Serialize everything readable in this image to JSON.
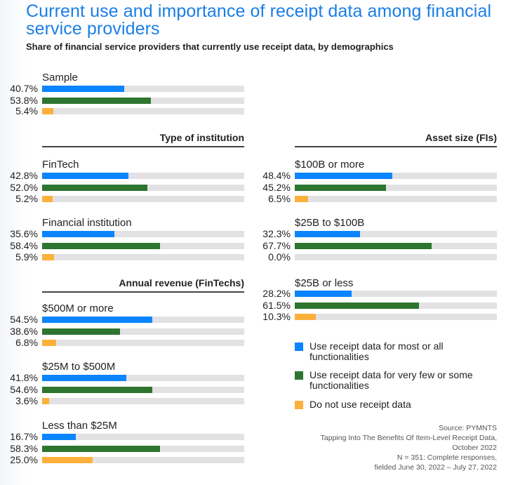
{
  "title": "Current use and importance of receipt data among financial service providers",
  "subtitle": "Share of financial service providers that currently use receipt data, by demographics",
  "colors": {
    "most_or_all": "#0a84ff",
    "few_or_some": "#2e7530",
    "do_not_use": "#fcb03b",
    "title": "#1a7ee6",
    "track": "#e2e2e4"
  },
  "chart_data": {
    "type": "bar",
    "orientation": "horizontal",
    "title": "Current use and importance of receipt data among financial service providers",
    "subtitle": "Share of financial service providers that currently use receipt data, by demographics",
    "xlabel": "",
    "ylabel": "",
    "xlim": [
      0,
      100
    ],
    "unit": "%",
    "grid": false,
    "legend_position": "bottom-right",
    "series_names": [
      "Use receipt data for most or all functionalities",
      "Use receipt data for very few or some functionalities",
      "Do not use receipt data"
    ],
    "sections": [
      {
        "header": "",
        "groups": [
          {
            "label": "Sample",
            "values": [
              40.7,
              53.8,
              5.4
            ],
            "display": [
              "40.7%",
              "53.8%",
              "5.4%"
            ]
          }
        ]
      },
      {
        "header": "Type of institution",
        "groups": [
          {
            "label": "FinTech",
            "values": [
              42.8,
              52.0,
              5.2
            ],
            "display": [
              "42.8%",
              "52.0%",
              "5.2%"
            ]
          },
          {
            "label": "Financial institution",
            "values": [
              35.6,
              58.4,
              5.9
            ],
            "display": [
              "35.6%",
              "58.4%",
              "5.9%"
            ]
          }
        ]
      },
      {
        "header": "Annual revenue (FinTechs)",
        "groups": [
          {
            "label": "$500M or more",
            "values": [
              54.5,
              38.6,
              6.8
            ],
            "display": [
              "54.5%",
              "38.6%",
              "6.8%"
            ]
          },
          {
            "label": "$25M to $500M",
            "values": [
              41.8,
              54.6,
              3.6
            ],
            "display": [
              "41.8%",
              "54.6%",
              "3.6%"
            ]
          },
          {
            "label": "Less than $25M",
            "values": [
              16.7,
              58.3,
              25.0
            ],
            "display": [
              "16.7%",
              "58.3%",
              "25.0%"
            ]
          }
        ]
      },
      {
        "header": "Asset size (FIs)",
        "groups": [
          {
            "label": "$100B or more",
            "values": [
              48.4,
              45.2,
              6.5
            ],
            "display": [
              "48.4%",
              "45.2%",
              "6.5%"
            ]
          },
          {
            "label": "$25B to $100B",
            "values": [
              32.3,
              67.7,
              0.0
            ],
            "display": [
              "32.3%",
              "67.7%",
              "0.0%"
            ]
          },
          {
            "label": "$25B or less",
            "values": [
              28.2,
              61.5,
              10.3
            ],
            "display": [
              "28.2%",
              "61.5%",
              "10.3%"
            ]
          }
        ]
      }
    ]
  },
  "legend": [
    {
      "label": "Use receipt data for most or all functionalities",
      "color": "#0a84ff"
    },
    {
      "label": "Use receipt data for very few or some functionalities",
      "color": "#2e7530"
    },
    {
      "label": "Do not use receipt data",
      "color": "#fcb03b"
    }
  ],
  "source": {
    "line1": "Source: PYMNTS",
    "line2": "Tapping Into The Benefits Of Item-Level Receipt Data,",
    "line3": "October 2022",
    "line4": "N = 351: Complete responses,",
    "line5": "fielded June 30, 2022 – July 27, 2022"
  }
}
